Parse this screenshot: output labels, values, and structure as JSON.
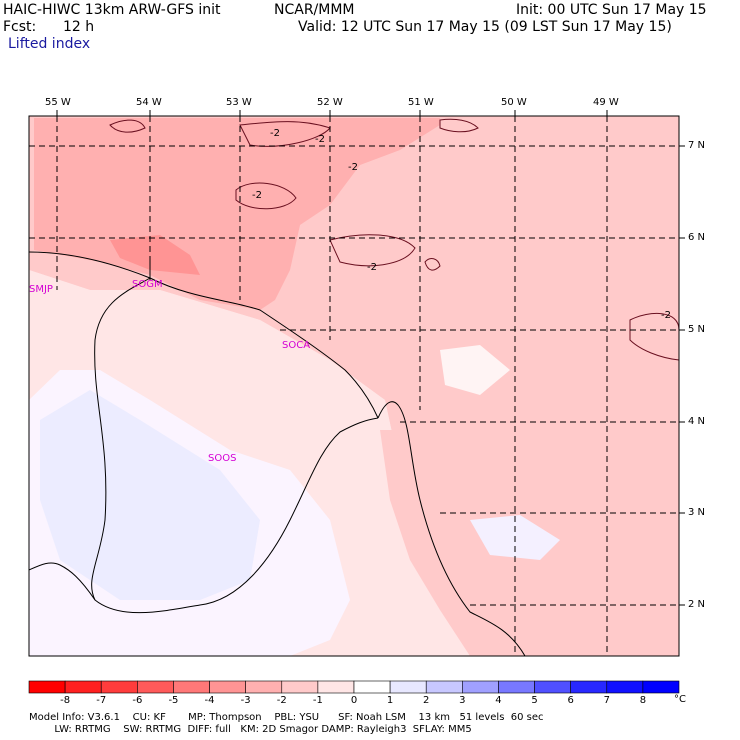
{
  "header": {
    "model_line": "HAIC-HIWC 13km ARW-GFS init",
    "org": "NCAR/MMM",
    "init": "Init: 00 UTC Sun 17 May 15",
    "fcst_label": "Fcst:",
    "fcst_value": "12 h",
    "valid": "Valid: 12 UTC Sun 17 May 15 (09 LST Sun 17 May 15)",
    "field": "Lifted index"
  },
  "axes": {
    "lon_labels": [
      "55 W",
      "54 W",
      "53 W",
      "52 W",
      "51 W",
      "50 W",
      "49 W"
    ],
    "lat_labels": [
      "7 N",
      "6 N",
      "5 N",
      "4 N",
      "3 N",
      "2 N"
    ]
  },
  "stations": [
    "SMJP",
    "SOGM",
    "SOCA",
    "SOOS"
  ],
  "contour_labels": [
    "-2",
    "-2",
    "-2",
    "-2",
    "-2",
    "-2"
  ],
  "colorbar": {
    "ticks": [
      "-8",
      "-7",
      "-6",
      "-5",
      "-4",
      "-3",
      "-2",
      "-1",
      "0",
      "1",
      "2",
      "3",
      "4",
      "5",
      "6",
      "7",
      "8"
    ],
    "unit": "°C",
    "colors": [
      "#ff0000",
      "#ff2020",
      "#ff3c3c",
      "#ff5a5a",
      "#ff7878",
      "#ff9494",
      "#ffb0b0",
      "#ffcaca",
      "#ffe6e6",
      "#ffffff",
      "#e8e8ff",
      "#c8c8ff",
      "#a0a0ff",
      "#7878ff",
      "#5050ff",
      "#2828ff",
      "#0000ff"
    ]
  },
  "footer": {
    "line1": "Model Info: V3.6.1    CU: KF       MP: Thompson    PBL: YSU      SF: Noah LSM    13 km   51 levels  60 sec",
    "line2": "        LW: RRTMG    SW: RRTMG  DIFF: full   KM: 2D Smagor DAMP: Rayleigh3  SFLAY: MM5"
  }
}
